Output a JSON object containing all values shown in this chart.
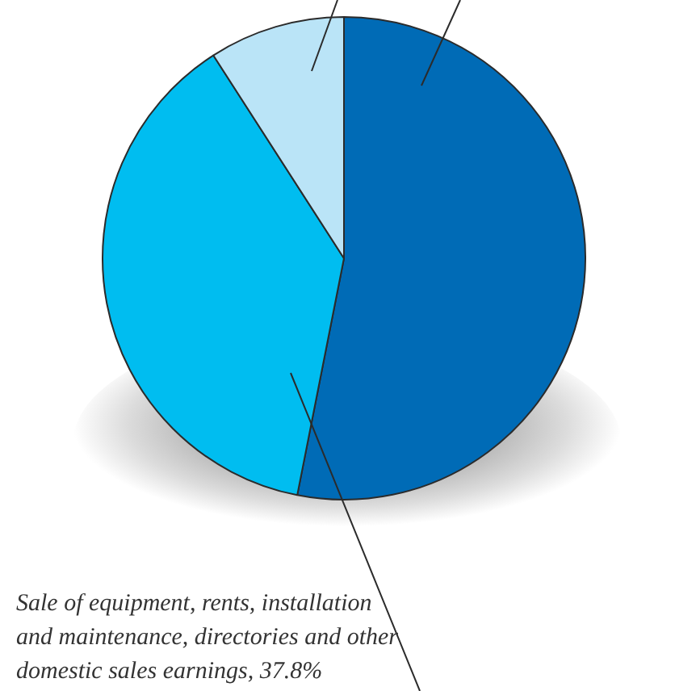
{
  "chart_data": {
    "type": "pie",
    "categories": [
      null,
      null,
      null
    ],
    "values": [
      53.1,
      37.8,
      9.1
    ],
    "colors": [
      "#006bb6",
      "#00bdf0",
      "#bae4f7"
    ],
    "annotations": [
      "Sale of equipment, rents, installation and maintenance, directories and other domestic sales earnings, 37.8%"
    ]
  }
}
